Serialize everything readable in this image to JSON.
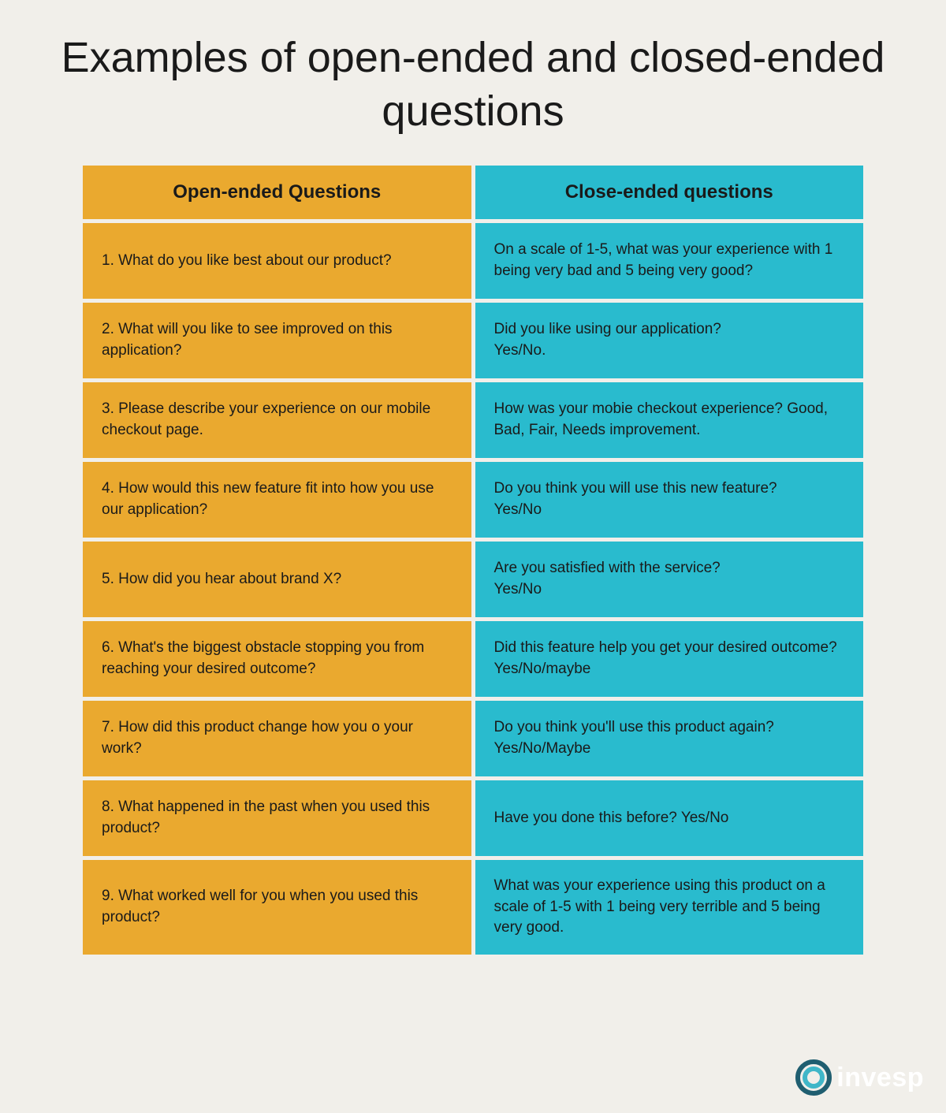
{
  "title": "Examples of open-ended and closed-ended questions",
  "colors": {
    "background": "#f1efea",
    "open_col": "#eaa92f",
    "close_col": "#29bbce",
    "text": "#1a1a1a",
    "logo_ring_outer": "#1f5e70",
    "logo_ring_inner": "#3fb6c8",
    "logo_text": "#ffffff"
  },
  "typography": {
    "title_fontsize": 54,
    "header_fontsize": 24,
    "cell_fontsize": 19
  },
  "headers": {
    "open": "Open-ended Questions",
    "close": "Close-ended questions"
  },
  "rows": [
    {
      "open": "1. What do you like best about our product?",
      "close": "On a scale of 1-5, what was your experience with 1 being very bad and 5 being very good?"
    },
    {
      "open": "2. What will you like to see improved on this application?",
      "close": "Did you like using our application?\nYes/No."
    },
    {
      "open": "3. Please describe your experience on our mobile checkout page.",
      "close": "How was your mobie checkout experience? Good, Bad, Fair, Needs improvement."
    },
    {
      "open": "4. How would this new feature fit into how you use our application?",
      "close": "Do you think you will use this new feature?\nYes/No"
    },
    {
      "open": "5. How did you hear about brand X?",
      "close": "Are you satisfied with the service?\nYes/No"
    },
    {
      "open": "6. What's the biggest obstacle stopping you from reaching your desired outcome?",
      "close": "Did this feature help you get your desired outcome? Yes/No/maybe"
    },
    {
      "open": "7. How did this product change how you o your work?",
      "close": "Do you think you'll use this product again?\nYes/No/Maybe"
    },
    {
      "open": "8. What happened in the past when you used this product?",
      "close": "Have you done this before? Yes/No"
    },
    {
      "open": "9. What worked well for you when you used this product?",
      "close": "What was your experience using this product on a scale of 1-5 with 1 being very terrible and 5 being very good."
    }
  ],
  "logo": {
    "text": "invesp"
  }
}
